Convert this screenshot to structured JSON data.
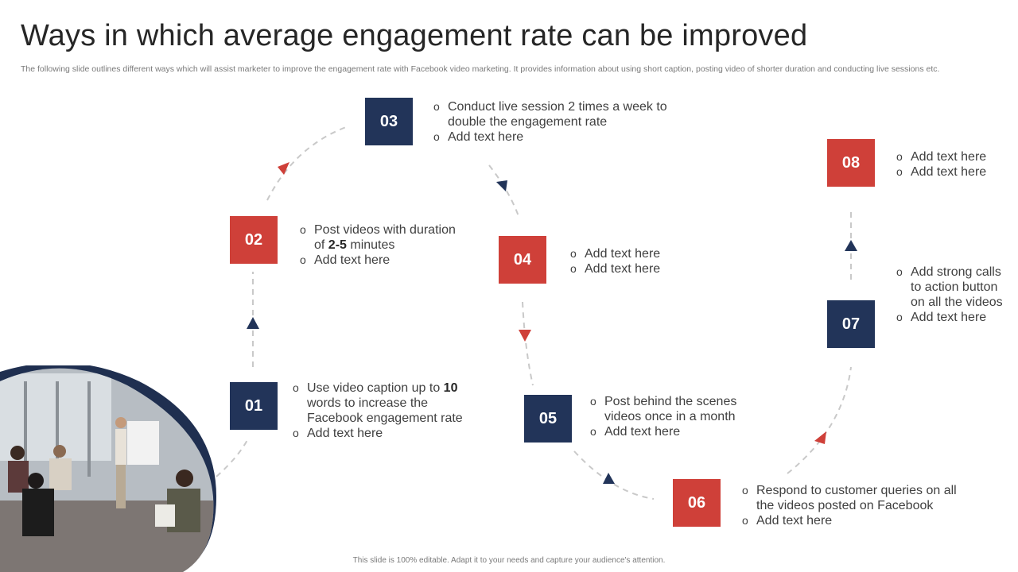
{
  "title": "Ways in which average engagement rate can be improved",
  "subtitle": "The following slide outlines different ways which will assist marketer to improve the engagement rate with Facebook video marketing. It provides information about using short caption, posting video of shorter duration and conducting live sessions etc.",
  "footer": "This slide is 100% editable. Adapt it to your needs and capture your audience's attention.",
  "colors": {
    "navy": "#223459",
    "red": "#cf4039"
  },
  "steps": [
    {
      "num": "01",
      "items": [
        {
          "pre": "Use video caption up to ",
          "bold": "10",
          "post": " words to increase the Facebook engagement rate"
        },
        {
          "text": "Add text here"
        }
      ]
    },
    {
      "num": "02",
      "items": [
        {
          "pre": "Post videos with duration of ",
          "bold": "2-5",
          "post": " minutes"
        },
        {
          "text": "Add text here"
        }
      ]
    },
    {
      "num": "03",
      "items": [
        {
          "text": "Conduct live session 2 times a week to double the engagement rate"
        },
        {
          "text": "Add text here"
        }
      ]
    },
    {
      "num": "04",
      "items": [
        {
          "text": "Add text here"
        },
        {
          "text": "Add text here"
        }
      ]
    },
    {
      "num": "05",
      "items": [
        {
          "text": "Post behind the scenes videos once in a month"
        },
        {
          "text": "Add text here"
        }
      ]
    },
    {
      "num": "06",
      "items": [
        {
          "text": "Respond to customer queries on all the videos posted on Facebook"
        },
        {
          "text": "Add text here"
        }
      ]
    },
    {
      "num": "07",
      "items": [
        {
          "text": "Add strong calls to action button on all the videos"
        },
        {
          "text": "Add text here"
        }
      ]
    },
    {
      "num": "08",
      "items": [
        {
          "text": "Add text here"
        },
        {
          "text": "Add text here"
        }
      ]
    }
  ]
}
